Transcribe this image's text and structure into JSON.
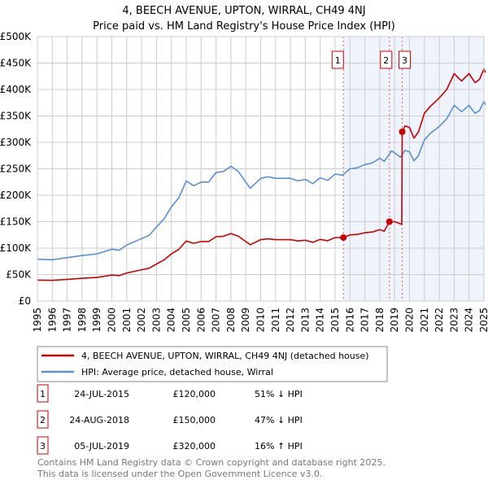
{
  "chart_data": {
    "type": "line",
    "title": "4, BEECH AVENUE, UPTON, WIRRAL, CH49 4NJ",
    "subtitle": "Price paid vs. HM Land Registry's House Price Index (HPI)",
    "xlim": [
      1995,
      2025
    ],
    "ylim": [
      0,
      500000
    ],
    "x_ticks": [
      "1995",
      "1996",
      "1997",
      "1998",
      "1999",
      "2000",
      "2001",
      "2002",
      "2003",
      "2004",
      "2005",
      "2006",
      "2007",
      "2008",
      "2009",
      "2010",
      "2011",
      "2012",
      "2013",
      "2014",
      "2015",
      "2016",
      "2017",
      "2018",
      "2019",
      "2020",
      "2021",
      "2022",
      "2023",
      "2024",
      "2025"
    ],
    "y_ticks": [
      {
        "v": 0,
        "label": "£0"
      },
      {
        "v": 50,
        "label": "£50K"
      },
      {
        "v": 100,
        "label": "£100K"
      },
      {
        "v": 150,
        "label": "£150K"
      },
      {
        "v": 200,
        "label": "£200K"
      },
      {
        "v": 250,
        "label": "£250K"
      },
      {
        "v": 300,
        "label": "£300K"
      },
      {
        "v": 350,
        "label": "£350K"
      },
      {
        "v": 400,
        "label": "£400K"
      },
      {
        "v": 450,
        "label": "£450K"
      },
      {
        "v": 500,
        "label": "£500K"
      }
    ],
    "grid": true,
    "series": [
      {
        "name": "4, BEECH AVENUE, UPTON, WIRRAL, CH49 4NJ (detached house)",
        "color": "#cc0000",
        "unit": "£K",
        "points": [
          [
            1995,
            39.5
          ],
          [
            1996,
            39
          ],
          [
            1997,
            41
          ],
          [
            1998,
            43
          ],
          [
            1999,
            44.5
          ],
          [
            2000,
            49
          ],
          [
            2000.5,
            48
          ],
          [
            2001,
            53
          ],
          [
            2002,
            59
          ],
          [
            2002.5,
            62
          ],
          [
            2003,
            70
          ],
          [
            2003.5,
            77.5
          ],
          [
            2004,
            89
          ],
          [
            2004.5,
            97.5
          ],
          [
            2005,
            113.5
          ],
          [
            2005.5,
            109
          ],
          [
            2006,
            112.5
          ],
          [
            2006.5,
            112.5
          ],
          [
            2007,
            121.5
          ],
          [
            2007.5,
            122.5
          ],
          [
            2008,
            127.5
          ],
          [
            2008.5,
            122.5
          ],
          [
            2009,
            112.5
          ],
          [
            2009.3,
            106.5
          ],
          [
            2010,
            116
          ],
          [
            2010.5,
            117.5
          ],
          [
            2011,
            116
          ],
          [
            2012,
            116
          ],
          [
            2012.5,
            113.5
          ],
          [
            2013,
            115
          ],
          [
            2013.5,
            111
          ],
          [
            2014,
            116.5
          ],
          [
            2014.5,
            114
          ],
          [
            2015,
            120
          ],
          [
            2015.56,
            120
          ],
          [
            2016,
            125
          ],
          [
            2016.5,
            126
          ],
          [
            2017,
            129
          ],
          [
            2017.5,
            130.5
          ],
          [
            2018,
            135
          ],
          [
            2018.3,
            132
          ],
          [
            2018.65,
            150
          ],
          [
            2019,
            150
          ],
          [
            2019.48,
            145
          ],
          [
            2019.51,
            320
          ],
          [
            2019.7,
            331
          ],
          [
            2020,
            328
          ],
          [
            2020.3,
            308
          ],
          [
            2020.6,
            320
          ],
          [
            2021,
            355
          ],
          [
            2021.4,
            368
          ],
          [
            2022,
            384
          ],
          [
            2022.5,
            400
          ],
          [
            2023,
            430
          ],
          [
            2023.5,
            416
          ],
          [
            2024,
            430
          ],
          [
            2024.4,
            413
          ],
          [
            2024.7,
            419
          ],
          [
            2025,
            439
          ],
          [
            2025.1,
            432
          ]
        ]
      },
      {
        "name": "HPI: Average price, detached house, Wirral",
        "color": "#5b8fd6",
        "unit": "£K",
        "points": [
          [
            1995,
            79
          ],
          [
            1996,
            78
          ],
          [
            1997,
            82
          ],
          [
            1998,
            86
          ],
          [
            1999,
            89
          ],
          [
            2000,
            98
          ],
          [
            2000.5,
            96
          ],
          [
            2001,
            106
          ],
          [
            2002,
            118
          ],
          [
            2002.5,
            124
          ],
          [
            2003,
            140
          ],
          [
            2003.5,
            155
          ],
          [
            2004,
            178
          ],
          [
            2004.5,
            195
          ],
          [
            2005,
            227
          ],
          [
            2005.5,
            218
          ],
          [
            2006,
            225
          ],
          [
            2006.5,
            225
          ],
          [
            2007,
            243
          ],
          [
            2007.5,
            245
          ],
          [
            2008,
            255
          ],
          [
            2008.5,
            245
          ],
          [
            2009,
            225
          ],
          [
            2009.3,
            213
          ],
          [
            2010,
            232
          ],
          [
            2010.5,
            235
          ],
          [
            2011,
            232
          ],
          [
            2012,
            232
          ],
          [
            2012.5,
            227
          ],
          [
            2013,
            230
          ],
          [
            2013.5,
            222
          ],
          [
            2014,
            233
          ],
          [
            2014.5,
            228
          ],
          [
            2015,
            240
          ],
          [
            2015.5,
            238
          ],
          [
            2016,
            250
          ],
          [
            2016.5,
            252
          ],
          [
            2017,
            258
          ],
          [
            2017.5,
            261
          ],
          [
            2018,
            270
          ],
          [
            2018.3,
            264
          ],
          [
            2018.8,
            284
          ],
          [
            2019.4,
            272
          ],
          [
            2019.7,
            285
          ],
          [
            2020,
            282
          ],
          [
            2020.3,
            265
          ],
          [
            2020.6,
            275
          ],
          [
            2021,
            305
          ],
          [
            2021.4,
            317
          ],
          [
            2022,
            330
          ],
          [
            2022.5,
            345
          ],
          [
            2023,
            370
          ],
          [
            2023.5,
            358
          ],
          [
            2024,
            370
          ],
          [
            2024.4,
            355
          ],
          [
            2024.7,
            360
          ],
          [
            2025,
            378
          ],
          [
            2025.1,
            371
          ]
        ]
      }
    ],
    "sales": [
      {
        "id": "1",
        "x": 2015.56,
        "y": 120,
        "date": "24-JUL-2015",
        "price": "£120,000",
        "hpi": "51% ↓ HPI"
      },
      {
        "id": "2",
        "x": 2018.65,
        "y": 150,
        "date": "24-AUG-2018",
        "price": "£150,000",
        "hpi": "47% ↓ HPI"
      },
      {
        "id": "3",
        "x": 2019.51,
        "y": 320,
        "date": "05-JUL-2019",
        "price": "£320,000",
        "hpi": "16% ↑ HPI"
      }
    ],
    "legend_placement": "below"
  },
  "footer": {
    "line1": "Contains HM Land Registry data © Crown copyright and database right 2025.",
    "line2": "This data is licensed under the Open Government Licence v3.0."
  }
}
